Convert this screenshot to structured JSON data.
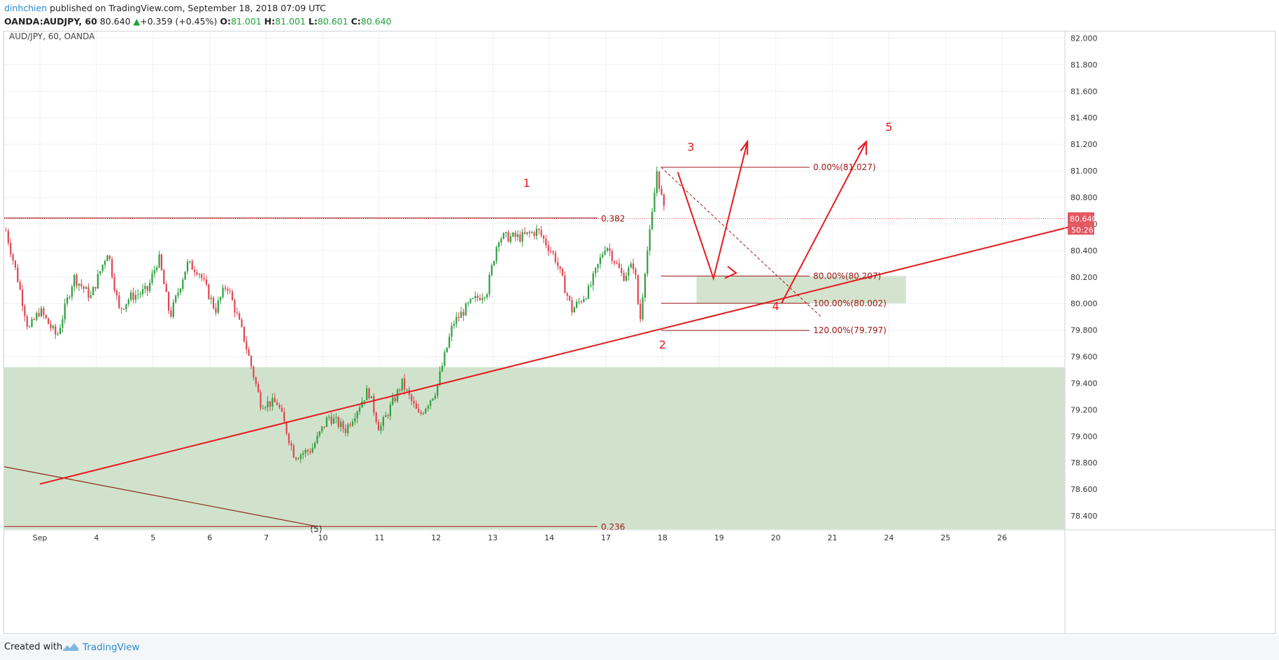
{
  "header": {
    "author": "dinhchien",
    "published": " published on TradingView.com, September 18, 2018 07:09 UTC",
    "symbol": "OANDA:AUDJPY, 60",
    "last": "80.640",
    "change": "+0.359 (+0.45%)",
    "o_label": "O:",
    "o": "81.001",
    "h_label": "H:",
    "h": "81.001",
    "l_label": "L:",
    "l": "80.601",
    "c_label": "C:",
    "c": "80.640"
  },
  "footer": {
    "created_with": "Created with",
    "brand": "TradingView"
  },
  "colors": {
    "up": "#2e9e3e",
    "down": "#e04552",
    "drawing": "#e8191d",
    "fib": "#a01818",
    "zone": "#cfe0c9",
    "price_tag": "#e35861"
  },
  "chart_data": {
    "type": "candlestick",
    "title": "AUD/JPY, 60, OANDA",
    "ylim": [
      78.3,
      82.05
    ],
    "y_ticks": [
      "82.000",
      "81.800",
      "81.600",
      "81.400",
      "81.200",
      "81.000",
      "80.800",
      "80.600",
      "80.400",
      "80.200",
      "80.000",
      "79.800",
      "79.600",
      "79.400",
      "79.200",
      "79.000",
      "78.800",
      "78.600",
      "78.400"
    ],
    "x_ticks": [
      {
        "label": "Sep",
        "day": 0
      },
      {
        "label": "4",
        "day": 1
      },
      {
        "label": "5",
        "day": 2
      },
      {
        "label": "6",
        "day": 3
      },
      {
        "label": "7",
        "day": 4
      },
      {
        "label": "10",
        "day": 5
      },
      {
        "label": "11",
        "day": 6
      },
      {
        "label": "12",
        "day": 7
      },
      {
        "label": "13",
        "day": 8
      },
      {
        "label": "14",
        "day": 9
      },
      {
        "label": "17",
        "day": 10
      },
      {
        "label": "18",
        "day": 11
      },
      {
        "label": "19",
        "day": 12
      },
      {
        "label": "20",
        "day": 13
      },
      {
        "label": "21",
        "day": 14
      },
      {
        "label": "24",
        "day": 15
      },
      {
        "label": "25",
        "day": 16
      },
      {
        "label": "26",
        "day": 17
      }
    ],
    "price_series": [
      {
        "day": -0.6,
        "price": 80.55
      },
      {
        "day": -0.4,
        "price": 80.2
      },
      {
        "day": -0.2,
        "price": 79.8
      },
      {
        "day": 0.0,
        "price": 79.95
      },
      {
        "day": 0.3,
        "price": 79.75
      },
      {
        "day": 0.6,
        "price": 80.2
      },
      {
        "day": 0.9,
        "price": 80.05
      },
      {
        "day": 1.2,
        "price": 80.4
      },
      {
        "day": 1.4,
        "price": 79.95
      },
      {
        "day": 1.6,
        "price": 80.05
      },
      {
        "day": 1.9,
        "price": 80.1
      },
      {
        "day": 2.1,
        "price": 80.35
      },
      {
        "day": 2.3,
        "price": 79.9
      },
      {
        "day": 2.6,
        "price": 80.3
      },
      {
        "day": 2.8,
        "price": 80.25
      },
      {
        "day": 3.1,
        "price": 79.95
      },
      {
        "day": 3.3,
        "price": 80.15
      },
      {
        "day": 3.6,
        "price": 79.75
      },
      {
        "day": 3.9,
        "price": 79.25
      },
      {
        "day": 4.2,
        "price": 79.25
      },
      {
        "day": 4.5,
        "price": 78.85
      },
      {
        "day": 4.8,
        "price": 78.9
      },
      {
        "day": 5.1,
        "price": 79.15
      },
      {
        "day": 5.4,
        "price": 79.05
      },
      {
        "day": 5.8,
        "price": 79.35
      },
      {
        "day": 6.0,
        "price": 79.05
      },
      {
        "day": 6.4,
        "price": 79.4
      },
      {
        "day": 6.7,
        "price": 79.15
      },
      {
        "day": 7.0,
        "price": 79.35
      },
      {
        "day": 7.3,
        "price": 79.85
      },
      {
        "day": 7.6,
        "price": 80.0
      },
      {
        "day": 7.9,
        "price": 80.1
      },
      {
        "day": 8.1,
        "price": 80.5
      },
      {
        "day": 8.5,
        "price": 80.5
      },
      {
        "day": 8.8,
        "price": 80.55
      },
      {
        "day": 9.1,
        "price": 80.35
      },
      {
        "day": 9.4,
        "price": 79.95
      },
      {
        "day": 9.7,
        "price": 80.1
      },
      {
        "day": 10.0,
        "price": 80.45
      },
      {
        "day": 10.3,
        "price": 80.2
      },
      {
        "day": 10.5,
        "price": 80.3
      },
      {
        "day": 10.6,
        "price": 79.85
      },
      {
        "day": 10.7,
        "price": 80.3
      },
      {
        "day": 10.8,
        "price": 80.6
      },
      {
        "day": 10.9,
        "price": 81.0
      },
      {
        "day": 11.05,
        "price": 80.64
      }
    ],
    "support_zone": {
      "from": 78.3,
      "to": 79.52,
      "label": ""
    },
    "target_zone": {
      "day_from": 11.6,
      "day_to": 15.3,
      "from": 80.002,
      "to": 80.207
    },
    "horizontal_line": {
      "price": 80.64,
      "label": "0.382"
    },
    "bottom_line": {
      "price": 78.32,
      "label": "0.236"
    },
    "trendline": {
      "start": {
        "day": 0.0,
        "price": 78.64
      },
      "end": {
        "day": 18.5,
        "price": 80.61
      }
    },
    "down_line": {
      "start": {
        "day": -0.6,
        "price": 78.77
      },
      "end": {
        "day": 4.9,
        "price": 78.32
      }
    },
    "fib_levels": [
      {
        "label": "0.00%(81.027)",
        "price": 81.027
      },
      {
        "label": "80.00%(80.207)",
        "price": 80.207
      },
      {
        "label": "100.00%(80.002)",
        "price": 80.002
      },
      {
        "label": "120.00%(79.797)",
        "price": 79.797
      }
    ],
    "wave_labels": [
      {
        "label": "1",
        "day": 8.6,
        "price": 80.88
      },
      {
        "label": "2",
        "day": 11.0,
        "price": 79.66
      },
      {
        "label": "3",
        "day": 11.5,
        "price": 81.15
      },
      {
        "label": "4",
        "day": 13.0,
        "price": 79.95
      },
      {
        "label": "5",
        "day": 15.0,
        "price": 81.3
      }
    ],
    "bottom_partial_label": "(5)",
    "price_tag": "80.640",
    "countdown_tag": "50:26"
  }
}
